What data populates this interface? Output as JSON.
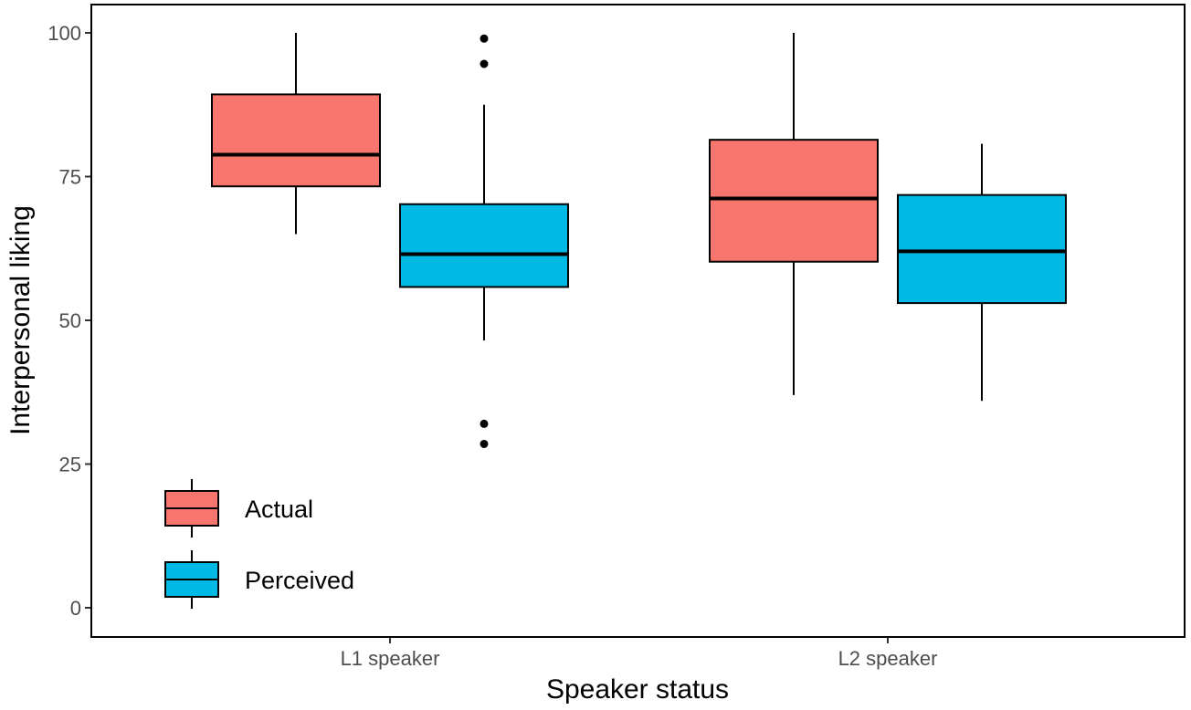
{
  "chart_data": {
    "type": "boxplot",
    "title": "",
    "xlabel": "Speaker status",
    "ylabel": "Interpersonal liking",
    "categories": [
      "L1 speaker",
      "L2 speaker"
    ],
    "ylim": [
      -3,
      105
    ],
    "yticks": [
      0,
      25,
      50,
      75,
      100
    ],
    "grid": false,
    "legend_position": "bottom-left",
    "series": [
      {
        "name": "Actual",
        "color": "#F8766D",
        "boxes": [
          {
            "category": "L1 speaker",
            "lower_whisker": 65,
            "q1": 73.3,
            "median": 78.8,
            "q3": 89.3,
            "upper_whisker": 100,
            "outliers": []
          },
          {
            "category": "L2 speaker",
            "lower_whisker": 37,
            "q1": 60.2,
            "median": 71.2,
            "q3": 81.4,
            "upper_whisker": 100,
            "outliers": []
          }
        ]
      },
      {
        "name": "Perceived",
        "color": "#00BAE5",
        "boxes": [
          {
            "category": "L1 speaker",
            "lower_whisker": 46.5,
            "q1": 55.8,
            "median": 61.5,
            "q3": 70.2,
            "upper_whisker": 87.5,
            "outliers": [
              99,
              94.6,
              32,
              28.5
            ]
          },
          {
            "category": "L2 speaker",
            "lower_whisker": 36,
            "q1": 53,
            "median": 62,
            "q3": 71.8,
            "upper_whisker": 80.7,
            "outliers": []
          }
        ]
      }
    ]
  }
}
